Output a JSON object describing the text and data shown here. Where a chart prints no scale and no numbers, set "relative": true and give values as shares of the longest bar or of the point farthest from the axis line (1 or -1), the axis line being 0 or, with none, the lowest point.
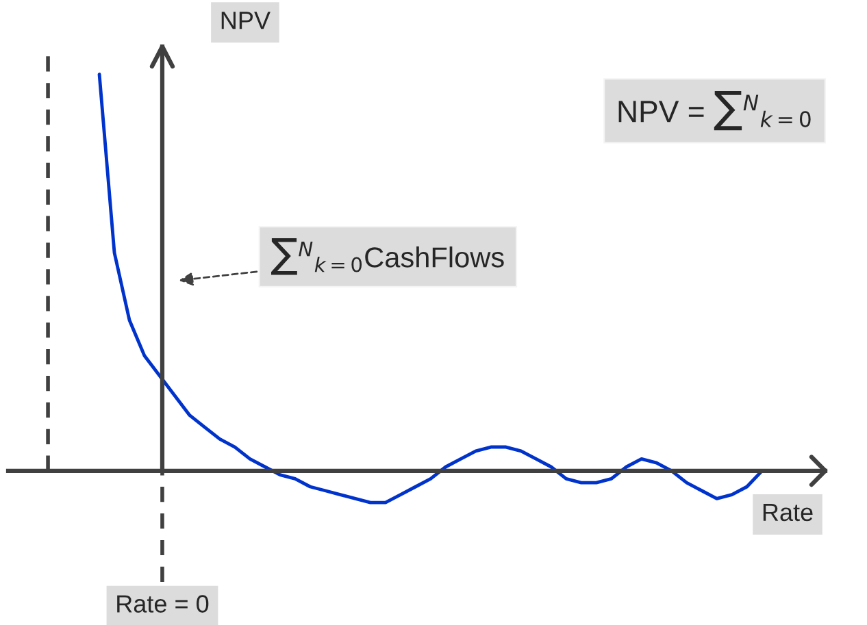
{
  "chart_data": {
    "type": "line",
    "relative": true,
    "xlabel": "Rate",
    "ylabel": "NPV",
    "categories": [
      null,
      null,
      null,
      null,
      null,
      null,
      null,
      null,
      null,
      null,
      null,
      null,
      null,
      null,
      null,
      null,
      null,
      null,
      null,
      null,
      null,
      null,
      null,
      null,
      null,
      null,
      null,
      null,
      null,
      null,
      null,
      null,
      null,
      null,
      null,
      null,
      null,
      null,
      null,
      null,
      null,
      null,
      null,
      null,
      null
    ],
    "series": [
      {
        "color": "#0033cc",
        "values": [
          1.0,
          0.55,
          0.38,
          0.29,
          0.24,
          0.19,
          0.14,
          0.11,
          0.08,
          0.06,
          0.03,
          0.01,
          -0.01,
          -0.02,
          -0.04,
          -0.05,
          -0.06,
          -0.07,
          -0.08,
          -0.08,
          -0.06,
          -0.04,
          -0.02,
          0.01,
          0.03,
          0.05,
          0.06,
          0.06,
          0.05,
          0.03,
          0.01,
          -0.02,
          -0.03,
          -0.03,
          -0.02,
          0.01,
          0.03,
          0.02,
          0.0,
          -0.03,
          -0.05,
          -0.07,
          -0.06,
          -0.04,
          0.0
        ]
      }
    ],
    "annotations": [
      "NPV = ∑$^{N}$$_{k=0}$",
      "∑$^{N}$$_{k=0}$CashFlows",
      "Rate = 0"
    ]
  }
}
